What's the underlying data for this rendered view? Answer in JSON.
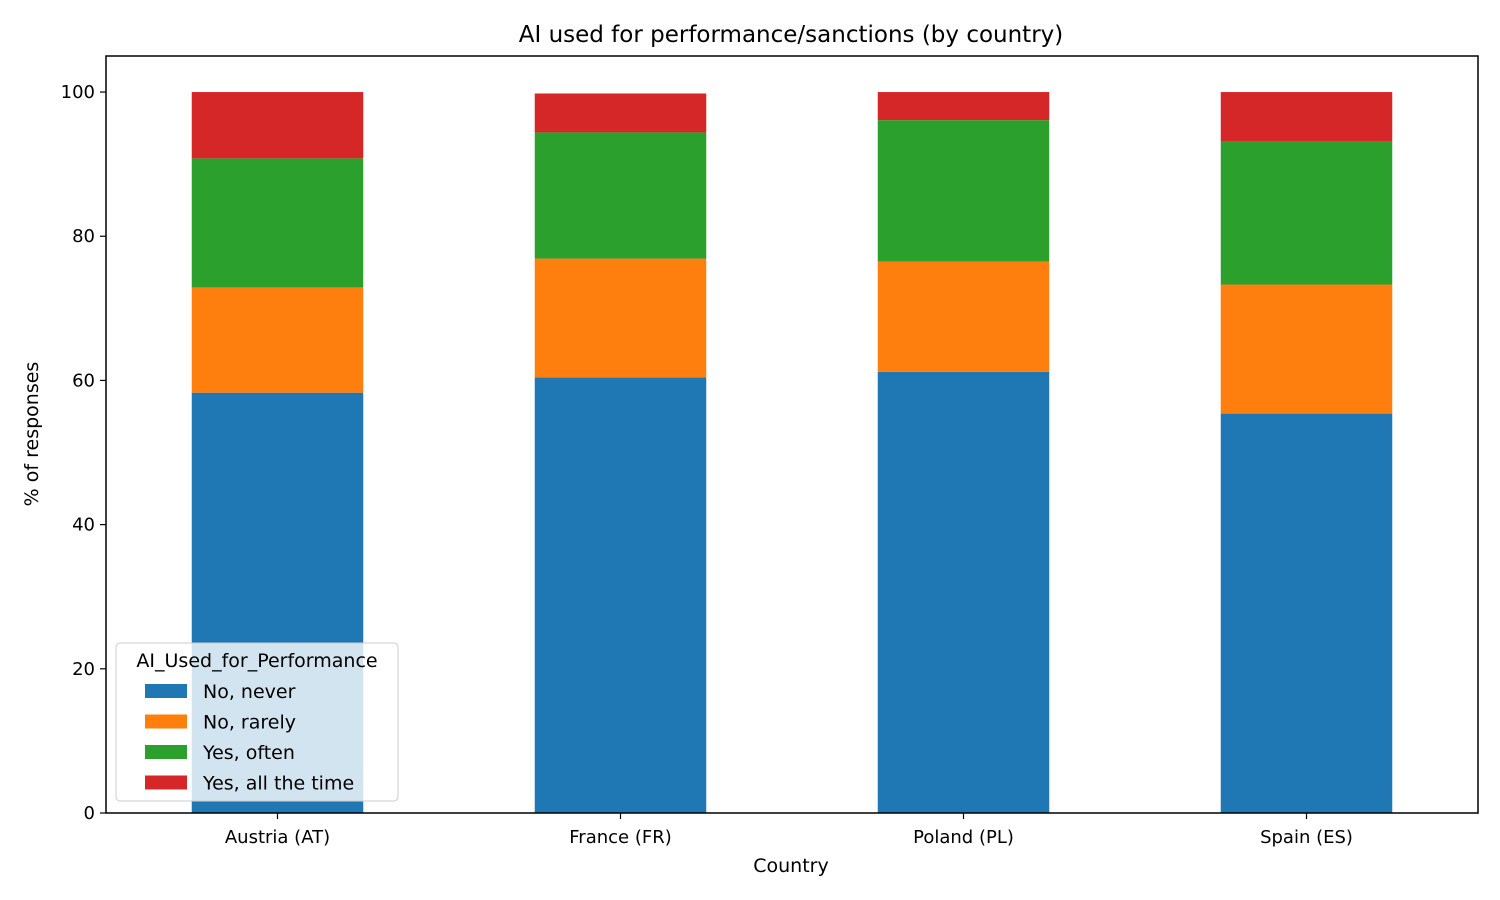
{
  "chart_data": {
    "type": "bar",
    "stacked": true,
    "title": "AI used for performance/sanctions (by country)",
    "xlabel": "Country",
    "ylabel": "% of responses",
    "categories": [
      "Austria (AT)",
      "France (FR)",
      "Poland (PL)",
      "Spain (ES)"
    ],
    "ylim": [
      0,
      105
    ],
    "yticks": [
      0,
      20,
      40,
      60,
      80,
      100
    ],
    "grid": false,
    "legend": {
      "title": "AI_Used_for_Performance",
      "placement": "lower-left"
    },
    "series": [
      {
        "name": "No, never",
        "color": "#1f77b4",
        "values": [
          58.3,
          60.4,
          61.2,
          55.4
        ]
      },
      {
        "name": "No, rarely",
        "color": "#ff7f0e",
        "values": [
          14.6,
          16.5,
          15.3,
          17.9
        ]
      },
      {
        "name": "Yes, often",
        "color": "#2ca02c",
        "values": [
          17.9,
          17.5,
          19.6,
          19.8
        ]
      },
      {
        "name": "Yes, all the time",
        "color": "#d62728",
        "values": [
          9.2,
          5.4,
          3.9,
          6.9
        ]
      }
    ]
  }
}
